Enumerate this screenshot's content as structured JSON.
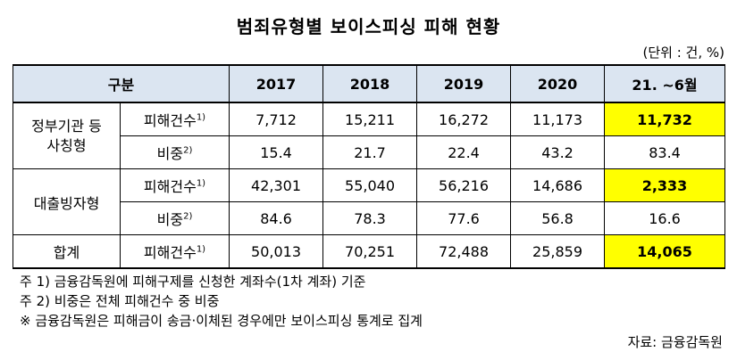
{
  "title": "범죄유형별 보이스피싱 피해 현황",
  "unit": "(단위 : 건, %)",
  "headers": [
    "구분",
    "2017",
    "2018",
    "2019",
    "2020",
    "21. ~6월"
  ],
  "groups": {
    "gov": {
      "label_line1": "정부기관 등",
      "label_line2": "사칭형"
    },
    "loan": {
      "label": "대출빙자형"
    },
    "total": {
      "label": "합계"
    }
  },
  "row_labels": {
    "count": "피해건수",
    "count_sup": "1)",
    "ratio": "비중",
    "ratio_sup": "2)"
  },
  "rows": {
    "gov_count": [
      "7,712",
      "15,211",
      "16,272",
      "11,173",
      "11,732"
    ],
    "gov_ratio": [
      "15.4",
      "21.7",
      "22.4",
      "43.2",
      "83.4"
    ],
    "loan_count": [
      "42,301",
      "55,040",
      "56,216",
      "14,686",
      "2,333"
    ],
    "loan_ratio": [
      "84.6",
      "78.3",
      "77.6",
      "56.8",
      "16.6"
    ],
    "total_count": [
      "50,013",
      "70,251",
      "72,488",
      "25,859",
      "14,065"
    ]
  },
  "notes": [
    "주 1) 금융감독원에 피해구제를 신청한 계좌수(1차 계좌) 기준",
    "주 2) 비중은 전체 피해건수 중 비중",
    "※ 금융감독원은 피해금이 송금·이체된 경우에만 보이스피싱 통계로 집계"
  ],
  "source": "자료: 금융감독원",
  "colors": {
    "header_bg": "#dbe5f1",
    "highlight": "#ffff00"
  }
}
